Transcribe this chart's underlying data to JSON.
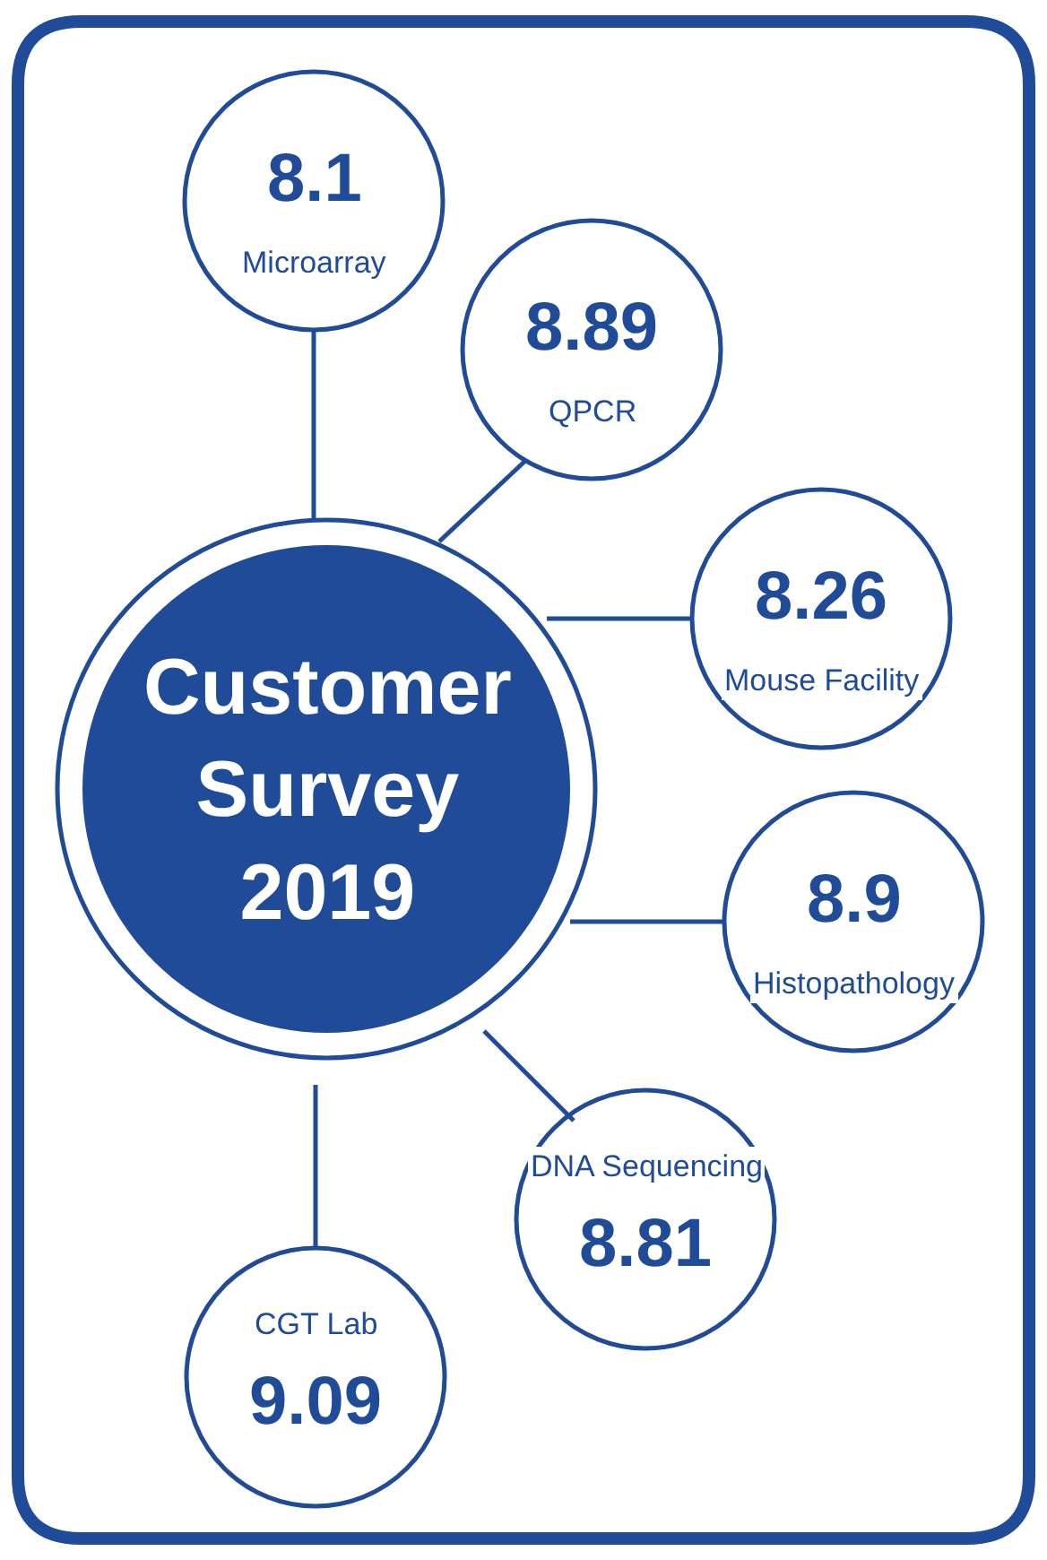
{
  "chart_data": {
    "type": "other",
    "title": "Customer Survey 2019",
    "categories": [
      "Microarray",
      "QPCR",
      "Mouse Facility",
      "Histopathology",
      "DNA Sequencing",
      "CGT Lab"
    ],
    "values": [
      8.1,
      8.89,
      8.26,
      8.9,
      8.81,
      9.09
    ],
    "data_labels": true,
    "color": "#1f4b99"
  }
}
